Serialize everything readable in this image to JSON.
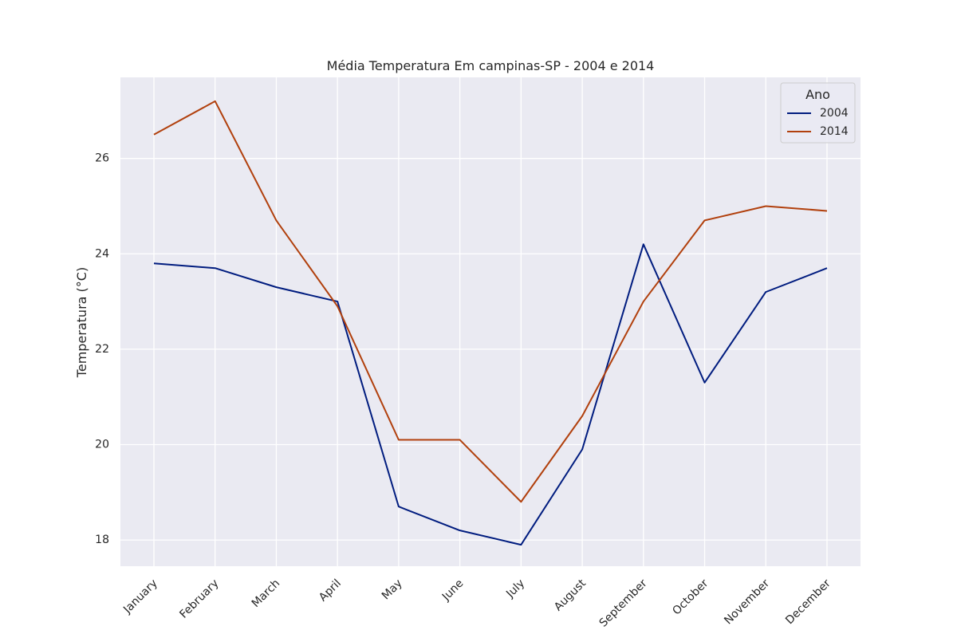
{
  "chart_data": {
    "type": "line",
    "title": "Média Temperatura Em campinas-SP - 2004 e 2014",
    "xlabel": "",
    "ylabel": "Temperatura (°C)",
    "categories": [
      "January",
      "February",
      "March",
      "April",
      "May",
      "June",
      "July",
      "August",
      "September",
      "October",
      "November",
      "December"
    ],
    "ylim": [
      17.45,
      27.7
    ],
    "yticks": [
      18,
      20,
      22,
      24,
      26
    ],
    "grid": true,
    "legend": {
      "title": "Ano",
      "placement": "top-right"
    },
    "series": [
      {
        "name": "2004",
        "color": "#001c7f",
        "values": [
          23.8,
          23.7,
          23.3,
          23.0,
          18.7,
          18.2,
          17.9,
          19.9,
          24.2,
          21.3,
          23.2,
          23.7
        ]
      },
      {
        "name": "2014",
        "color": "#b1400d",
        "values": [
          26.5,
          27.2,
          24.7,
          22.9,
          20.1,
          20.1,
          18.8,
          20.6,
          23.0,
          24.7,
          25.0,
          24.9
        ]
      }
    ]
  }
}
